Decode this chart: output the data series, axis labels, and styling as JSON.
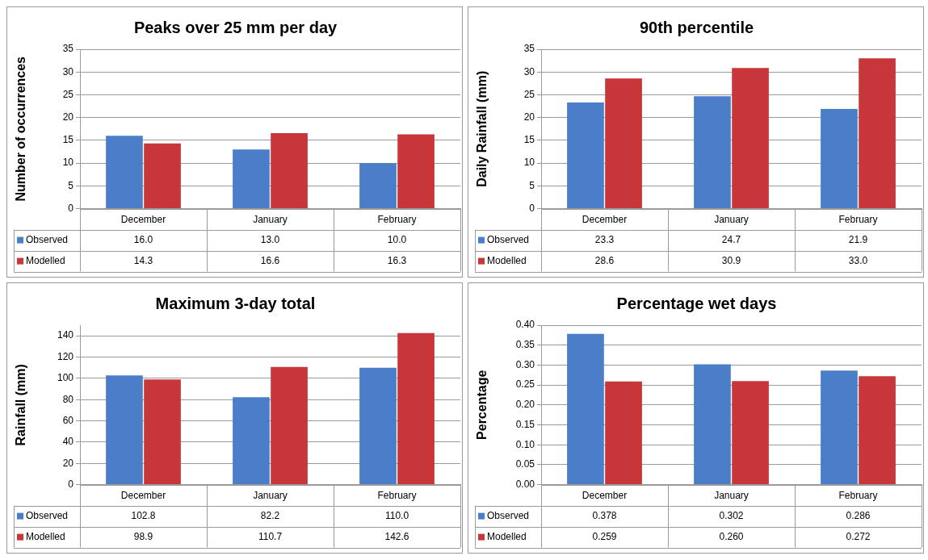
{
  "chart_data": [
    {
      "type": "bar",
      "title": "Peaks over 25 mm per day",
      "ylabel": "Number of occurrences",
      "categories": [
        "December",
        "January",
        "February"
      ],
      "series": [
        {
          "name": "Observed",
          "color": "#4a7ec8",
          "values": [
            16.0,
            13.0,
            10.0
          ],
          "value_labels": [
            "16.0",
            "13.0",
            "10.0"
          ]
        },
        {
          "name": "Modelled",
          "color": "#c7373a",
          "values": [
            14.3,
            16.6,
            16.3
          ],
          "value_labels": [
            "14.3",
            "16.6",
            "16.3"
          ]
        }
      ],
      "ylim": [
        0,
        35
      ],
      "yticks": [
        0,
        5,
        10,
        15,
        20,
        25,
        30,
        35
      ],
      "grid": "y",
      "legend": "bottom"
    },
    {
      "type": "bar",
      "title": "90th percentile",
      "ylabel": "Daily Rainfall (mm)",
      "categories": [
        "December",
        "January",
        "February"
      ],
      "series": [
        {
          "name": "Observed",
          "color": "#4a7ec8",
          "values": [
            23.3,
            24.7,
            21.9
          ],
          "value_labels": [
            "23.3",
            "24.7",
            "21.9"
          ]
        },
        {
          "name": "Modelled",
          "color": "#c7373a",
          "values": [
            28.6,
            30.9,
            33.0
          ],
          "value_labels": [
            "28.6",
            "30.9",
            "33.0"
          ]
        }
      ],
      "ylim": [
        0,
        35
      ],
      "yticks": [
        0,
        5,
        10,
        15,
        20,
        25,
        30,
        35
      ],
      "grid": "y",
      "legend": "bottom"
    },
    {
      "type": "bar",
      "title": "Maximum 3-day total",
      "ylabel": "Rainfall (mm)",
      "categories": [
        "December",
        "January",
        "February"
      ],
      "series": [
        {
          "name": "Observed",
          "color": "#4a7ec8",
          "values": [
            102.8,
            82.2,
            110.0
          ],
          "value_labels": [
            "102.8",
            "82.2",
            "110.0"
          ]
        },
        {
          "name": "Modelled",
          "color": "#c7373a",
          "values": [
            98.9,
            110.7,
            142.6
          ],
          "value_labels": [
            "98.9",
            "110.7",
            "142.6"
          ]
        }
      ],
      "ylim": [
        0,
        150
      ],
      "yticks": [
        0,
        20,
        40,
        60,
        80,
        100,
        120,
        140
      ],
      "grid": "y",
      "legend": "bottom"
    },
    {
      "type": "bar",
      "title": "Percentage wet days",
      "ylabel": "Percentage",
      "categories": [
        "December",
        "January",
        "February"
      ],
      "series": [
        {
          "name": "Observed",
          "color": "#4a7ec8",
          "values": [
            0.378,
            0.302,
            0.286
          ],
          "value_labels": [
            "0.378",
            "0.302",
            "0.286"
          ]
        },
        {
          "name": "Modelled",
          "color": "#c7373a",
          "values": [
            0.259,
            0.26,
            0.272
          ],
          "value_labels": [
            "0.259",
            "0.260",
            "0.272"
          ]
        }
      ],
      "ylim": [
        0,
        0.4
      ],
      "yticks": [
        {
          "value": 0,
          "label": "0.00"
        },
        {
          "value": 0.05,
          "label": "0.05"
        },
        {
          "value": 0.1,
          "label": "0.10"
        },
        {
          "value": 0.15,
          "label": "0.15"
        },
        {
          "value": 0.2,
          "label": "0.20"
        },
        {
          "value": 0.25,
          "label": "0.25"
        },
        {
          "value": 0.3,
          "label": "0.30"
        },
        {
          "value": 0.35,
          "label": "0.35"
        },
        {
          "value": 0.4,
          "label": "0.40"
        }
      ],
      "grid": "y",
      "legend": "bottom"
    }
  ]
}
